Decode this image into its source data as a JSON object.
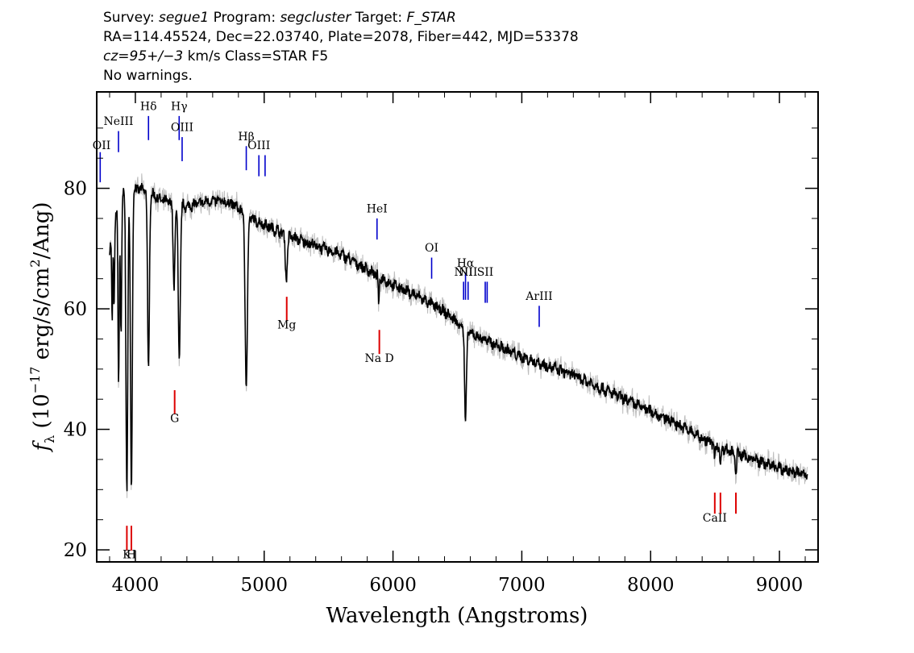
{
  "header": {
    "line1": {
      "survey_label": "Survey: ",
      "survey": "segue1",
      "program_label": " Program: ",
      "program": "segcluster",
      "target_label": " Target: ",
      "target": "F_STAR"
    },
    "line2": "RA=114.45524, Dec=22.03740, Plate=2078, Fiber=442, MJD=53378",
    "line3": {
      "cz": "cz=95+/−3",
      "rest": " km/s Class=STAR F5"
    },
    "line4": "No warnings."
  },
  "chart_data": {
    "type": "line",
    "xlabel": "Wavelength (Angstroms)",
    "ylabel_parts": {
      "f": "f",
      "sub": "λ",
      "pre": " (10",
      "exp": "−17",
      "mid": " erg/s/cm",
      "exp2": "2",
      "post": "/Ang)"
    },
    "xlim": [
      3700,
      9300
    ],
    "ylim": [
      18,
      96
    ],
    "x_ticks": [
      4000,
      5000,
      6000,
      7000,
      8000,
      9000
    ],
    "y_ticks": [
      20,
      40,
      60,
      80
    ],
    "grid": false,
    "colors": {
      "flux": "#000000",
      "error": "#bdbdbd",
      "emission": "#0000cc",
      "absorption": "#dd0000"
    },
    "continuum": [
      [
        3800,
        70
      ],
      [
        3850,
        76
      ],
      [
        3900,
        79
      ],
      [
        4000,
        80
      ],
      [
        4100,
        79.5
      ],
      [
        4200,
        78
      ],
      [
        4400,
        77
      ],
      [
        4600,
        78
      ],
      [
        4750,
        77.5
      ],
      [
        4900,
        75
      ],
      [
        5000,
        74
      ],
      [
        5200,
        72
      ],
      [
        5400,
        70.5
      ],
      [
        5600,
        69
      ],
      [
        5800,
        66.5
      ],
      [
        6000,
        64
      ],
      [
        6200,
        62
      ],
      [
        6400,
        59.5
      ],
      [
        6600,
        56
      ],
      [
        6800,
        54
      ],
      [
        7000,
        52
      ],
      [
        7200,
        50.5
      ],
      [
        7400,
        49
      ],
      [
        7600,
        47
      ],
      [
        7800,
        45
      ],
      [
        8000,
        43
      ],
      [
        8200,
        41
      ],
      [
        8400,
        38.5
      ],
      [
        8600,
        36.5
      ],
      [
        8800,
        35
      ],
      [
        9000,
        33.5
      ],
      [
        9200,
        32.5
      ]
    ],
    "absorption_features": [
      {
        "wave": 3820,
        "depth": 15,
        "width": 4
      },
      {
        "wave": 3835,
        "depth": 14,
        "width": 4
      },
      {
        "wave": 3870,
        "depth": 30,
        "width": 5
      },
      {
        "wave": 3889,
        "depth": 22,
        "width": 5
      },
      {
        "wave": 3934,
        "depth": 50,
        "width": 7
      },
      {
        "wave": 3969,
        "depth": 50,
        "width": 7
      },
      {
        "wave": 4102,
        "depth": 30,
        "width": 7
      },
      {
        "wave": 4300,
        "depth": 14,
        "width": 7
      },
      {
        "wave": 4341,
        "depth": 26,
        "width": 8
      },
      {
        "wave": 4861,
        "depth": 28,
        "width": 9
      },
      {
        "wave": 5172,
        "depth": 7,
        "width": 8
      },
      {
        "wave": 5890,
        "depth": 5,
        "width": 4
      },
      {
        "wave": 6563,
        "depth": 16,
        "width": 7
      },
      {
        "wave": 8498,
        "depth": 3,
        "width": 4
      },
      {
        "wave": 8542,
        "depth": 4,
        "width": 4
      },
      {
        "wave": 8662,
        "depth": 4,
        "width": 4
      }
    ],
    "line_markers": [
      {
        "label": "OII",
        "wave": 3727,
        "y_top": 86,
        "y_bottom": 81,
        "label_y": 86.5,
        "color": "emission"
      },
      {
        "label": "NeIII",
        "wave": 3869,
        "y_top": 89.5,
        "y_bottom": 86,
        "label_y": 90.5,
        "color": "emission"
      },
      {
        "label": "Hδ",
        "wave": 4102,
        "y_top": 92,
        "y_bottom": 88,
        "label_y": 93,
        "color": "emission"
      },
      {
        "label": "Hγ",
        "wave": 4340,
        "y_top": 92,
        "y_bottom": 88,
        "label_y": 93,
        "color": "emission"
      },
      {
        "label": "OIII",
        "wave": 4363,
        "y_top": 88.5,
        "y_bottom": 84.5,
        "label_y": 89.5,
        "color": "emission"
      },
      {
        "label": "Hβ",
        "wave": 4861,
        "y_top": 87,
        "y_bottom": 83,
        "label_y": 88,
        "color": "emission"
      },
      {
        "label": "OIII",
        "wave": 4959,
        "y_top": 85.5,
        "y_bottom": 82,
        "label_y": 86.5,
        "color": "emission"
      },
      {
        "label": "",
        "wave": 5007,
        "y_top": 85.5,
        "y_bottom": 82,
        "label_y": 86.5,
        "color": "emission"
      },
      {
        "label": "HeI",
        "wave": 5876,
        "y_top": 75,
        "y_bottom": 71.5,
        "label_y": 76,
        "color": "emission"
      },
      {
        "label": "OI",
        "wave": 6300,
        "y_top": 68.5,
        "y_bottom": 65,
        "label_y": 69.5,
        "color": "emission"
      },
      {
        "label": "NII",
        "wave": 6548,
        "y_top": 64.5,
        "y_bottom": 61.5,
        "label_y": 65.5,
        "color": "emission"
      },
      {
        "label": "Hα",
        "wave": 6563,
        "y_top": 66,
        "y_bottom": 61.5,
        "label_y": 67,
        "color": "emission"
      },
      {
        "label": "NII",
        "wave": 6583,
        "y_top": 64.5,
        "y_bottom": 61.5,
        "label_y": 65.5,
        "color": "emission"
      },
      {
        "label": "SII",
        "wave": 6716,
        "y_top": 64.5,
        "y_bottom": 61,
        "label_y": 65.5,
        "color": "emission"
      },
      {
        "label": "",
        "wave": 6731,
        "y_top": 64.5,
        "y_bottom": 61,
        "label_y": 65.5,
        "color": "emission"
      },
      {
        "label": "ArIII",
        "wave": 7135,
        "y_top": 60.5,
        "y_bottom": 57,
        "label_y": 61.5,
        "color": "emission"
      },
      {
        "label": "K",
        "wave": 3934,
        "y_top": 24,
        "y_bottom": 19.9,
        "label_y": 18.6,
        "color": "absorption"
      },
      {
        "label": "H",
        "wave": 3969,
        "y_top": 24,
        "y_bottom": 19.9,
        "label_y": 18.6,
        "color": "absorption"
      },
      {
        "label": "G",
        "wave": 4305,
        "y_top": 46.5,
        "y_bottom": 42.5,
        "label_y": 41.2,
        "color": "absorption"
      },
      {
        "label": "Mg",
        "wave": 5175,
        "y_top": 62,
        "y_bottom": 58,
        "label_y": 56.7,
        "color": "absorption"
      },
      {
        "label": "Na  D",
        "wave": 5894,
        "y_top": 56.5,
        "y_bottom": 52.5,
        "label_y": 51.2,
        "color": "absorption"
      },
      {
        "label": "CaII",
        "wave": 8498,
        "y_top": 29.5,
        "y_bottom": 26,
        "label_y": 24.7,
        "color": "absorption"
      },
      {
        "label": "",
        "wave": 8542,
        "y_top": 29.5,
        "y_bottom": 26,
        "label_y": 24.7,
        "color": "absorption"
      },
      {
        "label": "",
        "wave": 8662,
        "y_top": 29.5,
        "y_bottom": 26,
        "label_y": 24.7,
        "color": "absorption"
      }
    ]
  }
}
